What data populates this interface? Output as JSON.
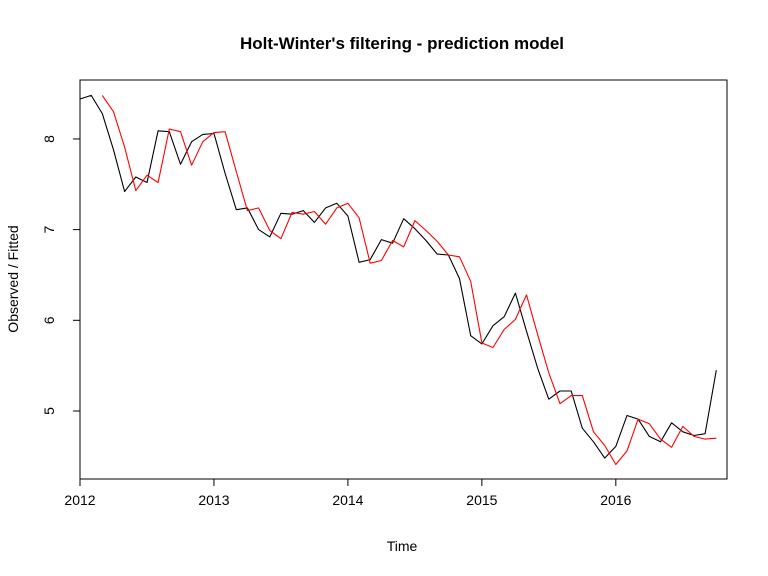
{
  "chart_data": {
    "type": "line",
    "title": "Holt-Winter's filtering - prediction model",
    "xlabel": "Time",
    "ylabel": "Observed / Fitted",
    "xlim": [
      2012.0,
      2016.83
    ],
    "ylim": [
      4.25,
      8.65
    ],
    "x_ticks": [
      2012,
      2013,
      2014,
      2015,
      2016
    ],
    "y_ticks": [
      5,
      6,
      7,
      8
    ],
    "grid": false,
    "legend": "none",
    "series": [
      {
        "color": "#000000",
        "x": [
          2012.0,
          2012.0833,
          2012.1667,
          2012.25,
          2012.3333,
          2012.4167,
          2012.5,
          2012.5833,
          2012.6667,
          2012.75,
          2012.8333,
          2012.9167,
          2013.0,
          2013.0833,
          2013.1667,
          2013.25,
          2013.3333,
          2013.4167,
          2013.5,
          2013.5833,
          2013.6667,
          2013.75,
          2013.8333,
          2013.9167,
          2014.0,
          2014.0833,
          2014.1667,
          2014.25,
          2014.3333,
          2014.4167,
          2014.5,
          2014.5833,
          2014.6667,
          2014.75,
          2014.8333,
          2014.9167,
          2015.0,
          2015.0833,
          2015.1667,
          2015.25,
          2015.3333,
          2015.4167,
          2015.5,
          2015.5833,
          2015.6667,
          2015.75,
          2015.8333,
          2015.9167,
          2016.0,
          2016.0833,
          2016.1667,
          2016.25,
          2016.3333,
          2016.4167,
          2016.5,
          2016.5833,
          2016.6667,
          2016.75
        ],
        "values": [
          8.44,
          8.48,
          8.28,
          7.88,
          7.42,
          7.58,
          7.52,
          8.09,
          8.08,
          7.72,
          7.97,
          8.05,
          8.06,
          7.62,
          7.22,
          7.24,
          7.0,
          6.92,
          7.18,
          7.17,
          7.21,
          7.08,
          7.24,
          7.29,
          7.15,
          6.64,
          6.67,
          6.89,
          6.85,
          7.12,
          7.01,
          6.88,
          6.73,
          6.72,
          6.46,
          5.83,
          5.74,
          5.94,
          6.04,
          6.3,
          5.88,
          5.47,
          5.13,
          5.22,
          5.22,
          4.81,
          4.66,
          4.48,
          4.61,
          4.95,
          4.91,
          4.72,
          4.66,
          4.87,
          4.77,
          4.73,
          4.75,
          5.45
        ]
      },
      {
        "color": "#ff0000",
        "x": [
          2012.1667,
          2012.25,
          2012.3333,
          2012.4167,
          2012.5,
          2012.5833,
          2012.6667,
          2012.75,
          2012.8333,
          2012.9167,
          2013.0,
          2013.0833,
          2013.1667,
          2013.25,
          2013.3333,
          2013.4167,
          2013.5,
          2013.5833,
          2013.6667,
          2013.75,
          2013.8333,
          2013.9167,
          2014.0,
          2014.0833,
          2014.1667,
          2014.25,
          2014.3333,
          2014.4167,
          2014.5,
          2014.5833,
          2014.6667,
          2014.75,
          2014.8333,
          2014.9167,
          2015.0,
          2015.0833,
          2015.1667,
          2015.25,
          2015.3333,
          2015.4167,
          2015.5,
          2015.5833,
          2015.6667,
          2015.75,
          2015.8333,
          2015.9167,
          2016.0,
          2016.0833,
          2016.1667,
          2016.25,
          2016.3333,
          2016.4167,
          2016.5,
          2016.5833,
          2016.6667,
          2016.75
        ],
        "values": [
          8.48,
          8.3,
          7.91,
          7.43,
          7.6,
          7.52,
          8.11,
          8.08,
          7.71,
          7.97,
          8.07,
          8.08,
          7.64,
          7.21,
          7.24,
          6.99,
          6.9,
          7.19,
          7.17,
          7.2,
          7.06,
          7.24,
          7.29,
          7.13,
          6.63,
          6.66,
          6.88,
          6.81,
          7.1,
          6.99,
          6.87,
          6.72,
          6.7,
          6.43,
          5.75,
          5.7,
          5.9,
          6.01,
          6.28,
          5.84,
          5.42,
          5.08,
          5.17,
          5.17,
          4.77,
          4.62,
          4.41,
          4.56,
          4.91,
          4.86,
          4.69,
          4.6,
          4.83,
          4.72,
          4.69,
          4.7
        ]
      }
    ]
  }
}
